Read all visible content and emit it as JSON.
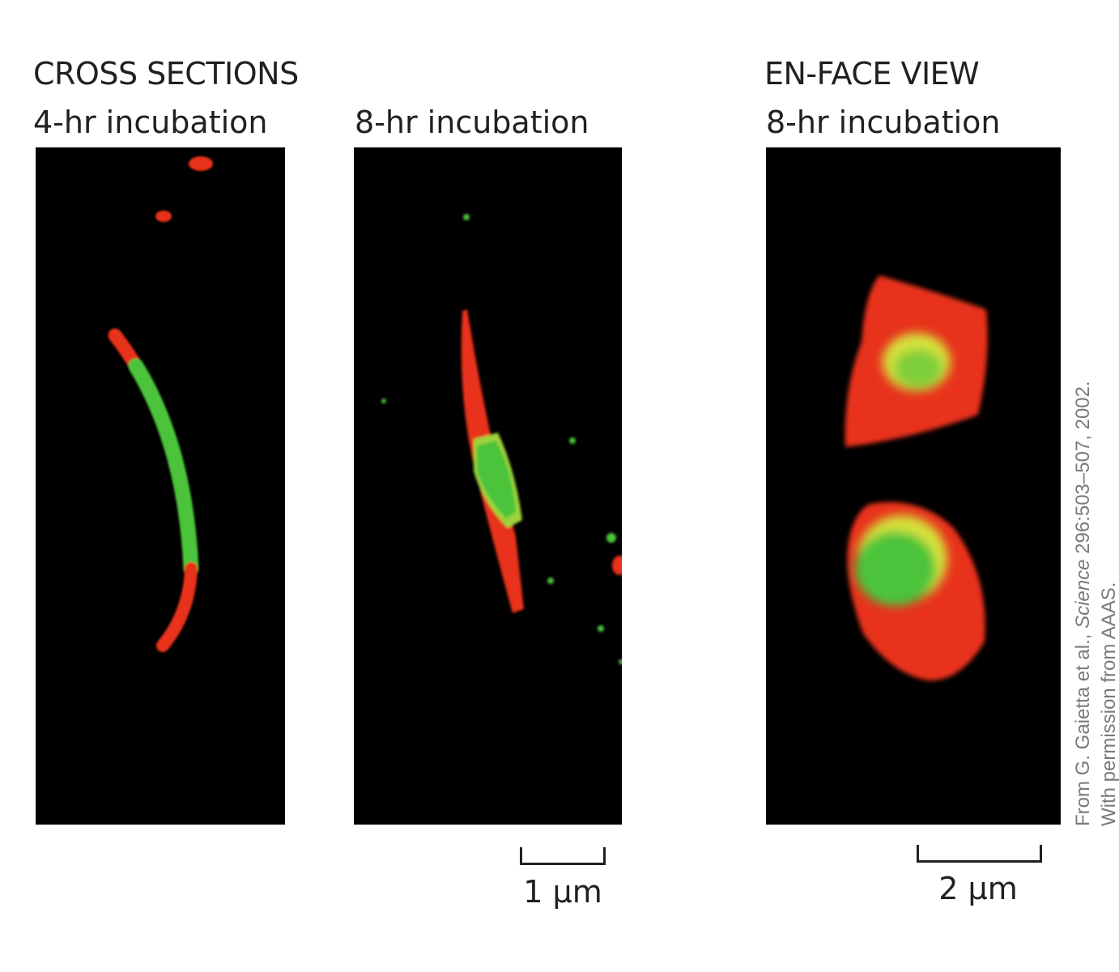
{
  "headings": {
    "cross_sections": "CROSS SECTIONS",
    "en_face": "EN-FACE VIEW"
  },
  "panels": [
    {
      "subtitle": "4-hr incubation",
      "image": "cross-section-4hr-micrograph"
    },
    {
      "subtitle": "8-hr incubation",
      "image": "cross-section-8hr-micrograph"
    },
    {
      "subtitle": "8-hr incubation",
      "image": "en-face-8hr-micrograph"
    }
  ],
  "scale_bars": {
    "cross": "1 µm",
    "en_face": "2 µm"
  },
  "credit": {
    "line1_prefix": "From G. Gaietta et al., ",
    "line1_journal": "Science",
    "line1_suffix": " 296:503–507, 2002.",
    "line2": "With permission from AAAS."
  },
  "colors": {
    "background": "#000000",
    "red_label": "#e8321c",
    "green_label": "#4cc43a",
    "yellow_overlap": "#d6e23a"
  }
}
